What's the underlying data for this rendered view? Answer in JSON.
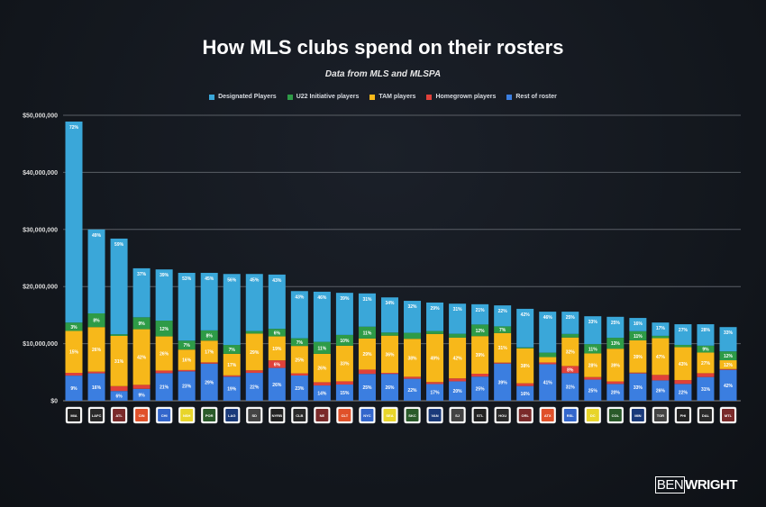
{
  "chart_data": {
    "type": "bar",
    "stacked": true,
    "title": "How MLS clubs spend on their rosters",
    "subtitle": "Data from MLS and MLSPA",
    "xlabel": "",
    "ylabel": "",
    "ylim": [
      0,
      50000000
    ],
    "y_ticks": [
      "$0",
      "$10,000,000",
      "$20,000,000",
      "$30,000,000",
      "$40,000,000",
      "$50,000,000"
    ],
    "grid": true,
    "legend_position": "top-center",
    "categories": [
      "MIA",
      "LAFC",
      "ATL",
      "CIN",
      "CHI",
      "NSH",
      "POR",
      "LAG",
      "SD",
      "NYRB",
      "CLB",
      "NE",
      "CLT",
      "NYC",
      "SEA",
      "SKC",
      "VAN",
      "SJ",
      "STL",
      "HOU",
      "ORL",
      "ATX",
      "RSL",
      "DC",
      "COL",
      "MIN",
      "TOR",
      "PHI",
      "DAL",
      "MTL"
    ],
    "totals_musd": [
      48.9,
      30.0,
      28.4,
      23.2,
      23.0,
      22.4,
      22.4,
      22.2,
      22.2,
      22.1,
      19.2,
      19.1,
      18.9,
      18.8,
      18.1,
      17.5,
      17.2,
      17.0,
      16.9,
      16.7,
      16.1,
      15.6,
      15.6,
      14.8,
      14.7,
      14.5,
      13.7,
      13.4,
      13.4,
      12.9
    ],
    "series": [
      {
        "name": "Rest of roster",
        "color": "#3b7ee0",
        "pct": [
          9,
          16,
          6,
          9,
          21,
          23,
          29,
          19,
          22,
          26,
          23,
          14,
          15,
          25,
          26,
          22,
          17,
          20,
          25,
          39,
          16,
          41,
          31,
          25,
          20,
          33,
          26,
          22,
          31,
          42
        ]
      },
      {
        "name": "Homegrown players",
        "color": "#e0413a",
        "pct": [
          1,
          1,
          3,
          3,
          2,
          1,
          1,
          1,
          2,
          6,
          2,
          3,
          3,
          4,
          1,
          2,
          2,
          3,
          3,
          1,
          3,
          2,
          8,
          3,
          3,
          1,
          7,
          5,
          5,
          1
        ]
      },
      {
        "name": "TAM players",
        "color": "#f7b81a",
        "pct": [
          15,
          26,
          31,
          42,
          26,
          16,
          17,
          17,
          29,
          19,
          25,
          26,
          33,
          29,
          36,
          38,
          49,
          42,
          39,
          31,
          38,
          6,
          32,
          28,
          39,
          39,
          47,
          43,
          27,
          12
        ]
      },
      {
        "name": "U22 Initiative players",
        "color": "#2e9b47",
        "pct": [
          3,
          8,
          1,
          9,
          12,
          7,
          8,
          7,
          2,
          6,
          7,
          11,
          10,
          11,
          3,
          6,
          3,
          4,
          12,
          7,
          1,
          5,
          4,
          11,
          13,
          11,
          3,
          3,
          9,
          12
        ]
      },
      {
        "name": "Designated Players",
        "color": "#3aa7d9",
        "pct": [
          72,
          49,
          59,
          37,
          39,
          53,
          45,
          56,
          45,
          43,
          43,
          46,
          39,
          31,
          34,
          32,
          29,
          31,
          21,
          22,
          42,
          46,
          25,
          33,
          25,
          16,
          17,
          27,
          28,
          33
        ]
      }
    ],
    "legend_order": [
      "Designated Players",
      "U22 Initiative players",
      "TAM players",
      "Homegrown players",
      "Rest of roster"
    ]
  },
  "brand": {
    "part1": "BEN",
    "part2": "WRIGHT"
  }
}
